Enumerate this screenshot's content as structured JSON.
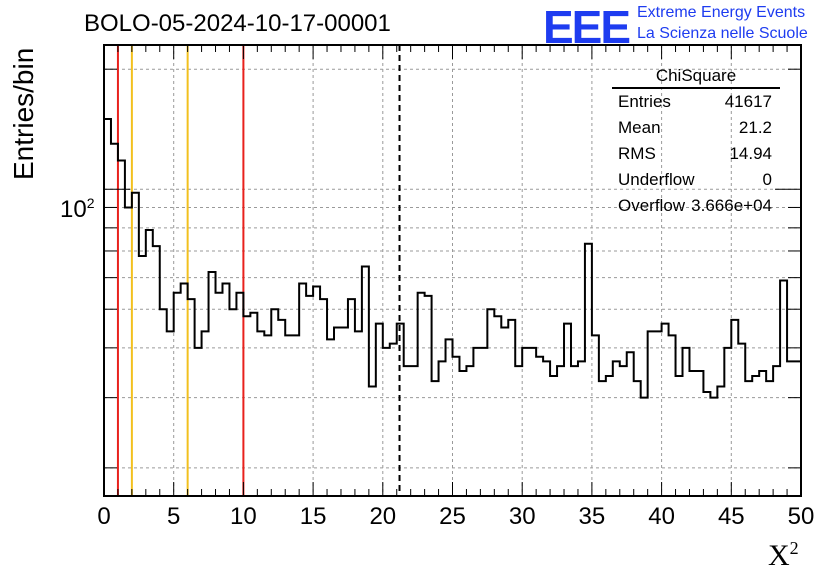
{
  "header": {
    "title": "BOLO-05-2024-10-17-00001",
    "logo_text": "EEE",
    "logo_line1": "Extreme Energy Events",
    "logo_line2": "La Scienza nelle Scuole"
  },
  "stats": {
    "title": "ChiSquare",
    "rows": [
      {
        "key": "Entries",
        "value": "41617"
      },
      {
        "key": "Mean",
        "value": "21.2"
      },
      {
        "key": "RMS",
        "value": "14.94"
      },
      {
        "key": "Underflow",
        "value": "0"
      },
      {
        "key": "Overflow",
        "value": "3.666e+04"
      }
    ]
  },
  "colors": {
    "red_line": "#e8211c",
    "yellow_line": "#f2c01e",
    "grid": "#9a9a9a",
    "logo": "#1e3cf0"
  },
  "chart_data": {
    "type": "histogram",
    "title": "BOLO-05-2024-10-17-00001",
    "xlabel": "X²",
    "ylabel": "Entries/bin",
    "xlim": [
      0,
      50
    ],
    "ylim": [
      17,
      230
    ],
    "yscale": "log",
    "bin_width": 0.5,
    "x_ticks": [
      0,
      5,
      10,
      15,
      20,
      25,
      30,
      35,
      40,
      45,
      50
    ],
    "y_tick_label": "10",
    "y_tick_exp": "2",
    "y_tick_value": 100,
    "grid": true,
    "vertical_lines": [
      {
        "x": 1,
        "color": "red",
        "style": "solid"
      },
      {
        "x": 2,
        "color": "yellow",
        "style": "solid"
      },
      {
        "x": 6,
        "color": "yellow",
        "style": "solid"
      },
      {
        "x": 10,
        "color": "red",
        "style": "solid"
      },
      {
        "x": 21.2,
        "color": "black",
        "style": "dashed"
      }
    ],
    "values": [
      150,
      130,
      118,
      90,
      98,
      68,
      79,
      72,
      50,
      44,
      55,
      58,
      53,
      40,
      44,
      62,
      55,
      58,
      50,
      55,
      48,
      49,
      44,
      43,
      50,
      47,
      43,
      43,
      58,
      54,
      57,
      53,
      42,
      45,
      45,
      53,
      44,
      64,
      32,
      46,
      40,
      41,
      46,
      36,
      36,
      55,
      54,
      33,
      37,
      42,
      38,
      35,
      36,
      40,
      40,
      50,
      48,
      45,
      47,
      36,
      40,
      40,
      38,
      37,
      34,
      36,
      46,
      36,
      37,
      73,
      43,
      33,
      34,
      37,
      36,
      39,
      33,
      30,
      44,
      44,
      46,
      43,
      34,
      40,
      35,
      35,
      31,
      30,
      32,
      40,
      47,
      41,
      33,
      34,
      35,
      33,
      36,
      59,
      37,
      37,
      0
    ]
  }
}
